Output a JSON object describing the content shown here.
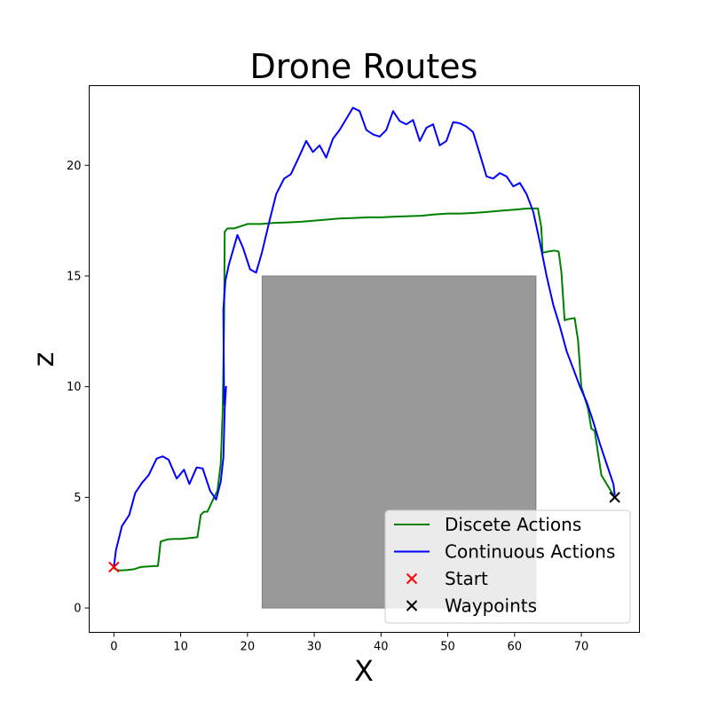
{
  "chart_data": {
    "type": "line",
    "title": "Drone Routes",
    "xlabel": "X",
    "ylabel": "z",
    "xlim": [
      -3.7,
      78.7
    ],
    "ylim": [
      -1.1,
      23.6
    ],
    "xticks": [
      0,
      10,
      20,
      30,
      40,
      50,
      60,
      70
    ],
    "yticks": [
      0,
      5,
      10,
      15,
      20
    ],
    "grid": false,
    "legend_position": "lower right",
    "obstacle": {
      "x": [
        22.2,
        63.2
      ],
      "z": [
        0,
        15
      ],
      "color": "#999999"
    },
    "series": [
      {
        "name": "Discete Actions",
        "color": "#008000",
        "x": [
          0,
          0.5,
          1,
          2,
          3,
          4,
          5,
          6,
          6.6,
          7,
          7.5,
          8,
          9,
          10,
          11,
          12,
          12.5,
          13,
          13.5,
          14,
          15,
          15.5,
          16,
          16.3,
          16.5,
          16.6,
          17,
          18,
          19,
          20,
          22,
          24,
          26,
          28,
          30,
          32,
          34,
          36,
          38,
          40,
          42,
          44,
          46,
          48,
          50,
          52,
          54,
          56,
          58,
          60,
          62,
          63.5,
          64,
          64.2,
          65,
          66,
          66.6,
          67,
          67.5,
          68,
          69,
          69.5,
          70,
          70.5,
          71,
          71.5,
          72,
          72.5,
          73,
          74,
          75
        ],
        "y": [
          1.8,
          1.72,
          1.7,
          1.72,
          1.75,
          1.85,
          1.87,
          1.9,
          1.9,
          3.0,
          3.05,
          3.1,
          3.12,
          3.12,
          3.15,
          3.18,
          3.2,
          4.2,
          4.35,
          4.35,
          5.0,
          5.3,
          6.5,
          9.0,
          13.0,
          17.0,
          17.15,
          17.15,
          17.25,
          17.35,
          17.35,
          17.4,
          17.42,
          17.45,
          17.5,
          17.55,
          17.6,
          17.62,
          17.65,
          17.65,
          17.68,
          17.7,
          17.72,
          17.78,
          17.82,
          17.82,
          17.85,
          17.9,
          17.95,
          18.0,
          18.05,
          18.05,
          17.2,
          16.05,
          16.1,
          16.15,
          16.1,
          15.2,
          13.0,
          13.05,
          13.1,
          12.1,
          10.0,
          9.5,
          9.0,
          8.1,
          8.0,
          7.0,
          6.0,
          5.5,
          5.0
        ]
      },
      {
        "name": "Continuous Actions",
        "color": "#0000ff",
        "x": [
          0,
          0.3,
          1.2,
          2.3,
          3.2,
          4.2,
          5.2,
          6.4,
          7.3,
          8.2,
          9.4,
          10.5,
          11.3,
          12.4,
          13.3,
          14.4,
          15.3,
          16.0,
          16.4,
          16.6,
          16.8,
          16.5,
          16.4,
          16.7,
          17.2,
          18.5,
          19.3,
          20.4,
          21.3,
          22.2,
          23.3,
          24.3,
          25.5,
          26.5,
          27.6,
          28.8,
          29.8,
          30.8,
          31.8,
          32.8,
          33.8,
          34.8,
          35.8,
          36.8,
          37.8,
          38.8,
          39.8,
          40.8,
          41.8,
          42.8,
          43.8,
          44.8,
          45.8,
          46.8,
          47.8,
          48.8,
          49.8,
          50.8,
          51.8,
          52.8,
          53.8,
          54.8,
          55.8,
          56.8,
          57.8,
          58.8,
          59.8,
          60.8,
          61.8,
          62.8,
          63.8,
          64.8,
          65.8,
          66.8,
          67.8,
          68.8,
          69.8,
          70.8,
          71.8,
          72.8,
          73.8,
          74.8,
          75.0
        ],
        "y": [
          1.85,
          2.6,
          3.7,
          4.2,
          5.2,
          5.65,
          6.0,
          6.75,
          6.85,
          6.7,
          5.85,
          6.25,
          5.6,
          6.35,
          6.3,
          5.3,
          4.9,
          5.7,
          6.8,
          9.0,
          10.0,
          9.2,
          13.5,
          14.8,
          15.5,
          16.85,
          16.3,
          15.3,
          15.15,
          16.1,
          17.5,
          18.7,
          19.4,
          19.6,
          20.3,
          21.1,
          20.6,
          20.9,
          20.35,
          21.2,
          21.6,
          22.1,
          22.6,
          22.45,
          21.6,
          21.4,
          21.3,
          21.6,
          22.45,
          22.0,
          21.85,
          22.05,
          21.1,
          21.7,
          21.85,
          20.9,
          21.1,
          21.95,
          21.9,
          21.75,
          21.5,
          20.5,
          19.5,
          19.4,
          19.65,
          19.5,
          19.05,
          19.2,
          18.7,
          17.9,
          16.5,
          15.0,
          13.7,
          12.7,
          11.6,
          10.8,
          10.0,
          9.3,
          8.4,
          7.4,
          6.5,
          5.6,
          5.1
        ]
      }
    ],
    "markers": [
      {
        "name": "Start",
        "color": "#ff0000",
        "x": 0,
        "y": 1.85
      },
      {
        "name": "Waypoints",
        "color": "#000000",
        "x": 75,
        "y": 5
      }
    ]
  }
}
